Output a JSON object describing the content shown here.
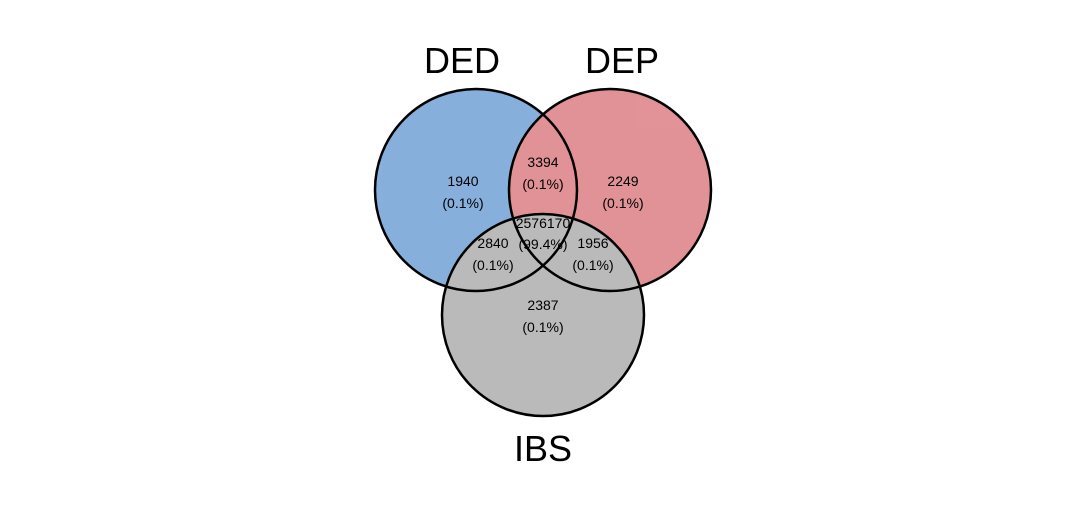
{
  "sets": [
    {
      "key": "ded",
      "label": "DED",
      "color": "#6a9cd4"
    },
    {
      "key": "dep",
      "label": "DEP",
      "color": "#d9787d"
    },
    {
      "key": "ibs",
      "label": "IBS",
      "color": "#a9a9a9"
    }
  ],
  "regions": [
    {
      "key": "ded_only",
      "count": "1940",
      "pct": "(0.1%)"
    },
    {
      "key": "ded_dep",
      "count": "3394",
      "pct": "(0.1%)"
    },
    {
      "key": "dep_only",
      "count": "2249",
      "pct": "(0.1%)"
    },
    {
      "key": "all_three",
      "count": "2576170",
      "pct": "(99.4%)"
    },
    {
      "key": "ded_ibs",
      "count": "2840",
      "pct": "(0.1%)"
    },
    {
      "key": "dep_ibs",
      "count": "1956",
      "pct": "(0.1%)"
    },
    {
      "key": "ibs_only",
      "count": "2387",
      "pct": "(0.1%)"
    }
  ]
}
